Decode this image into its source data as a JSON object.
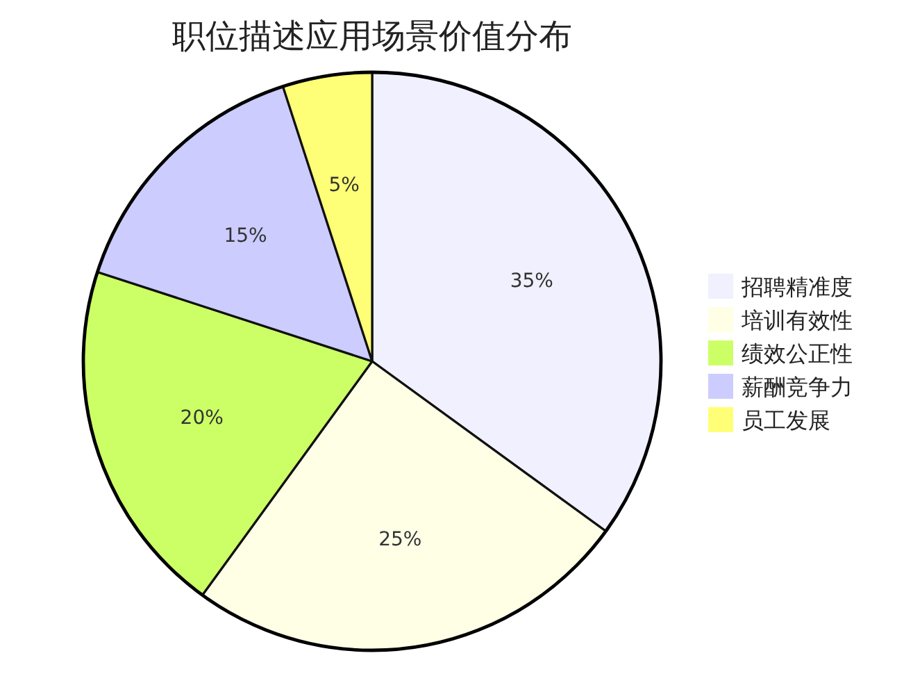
{
  "chart_data": {
    "type": "pie",
    "title": "职位描述应用场景价值分布",
    "categories": [
      "招聘精准度",
      "培训有效性",
      "绩效公正性",
      "薪酬竞争力",
      "员工发展"
    ],
    "values": [
      35,
      25,
      20,
      15,
      5
    ],
    "value_labels": [
      "35%",
      "25%",
      "20%",
      "15%",
      "5%"
    ],
    "colors": [
      "#f0f0ff",
      "#ffffe6",
      "#ccff66",
      "#ccccff",
      "#ffff77"
    ],
    "legend": "right"
  }
}
